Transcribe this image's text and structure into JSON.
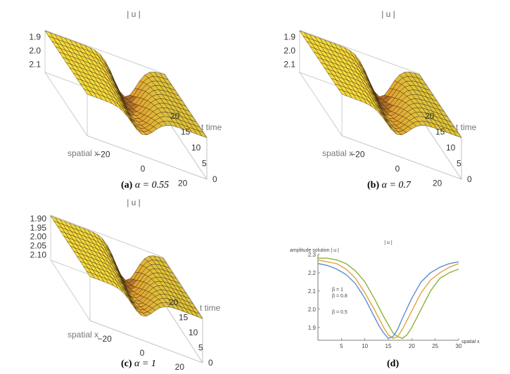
{
  "panels3d": [
    {
      "id": "a",
      "z_title": "| u |",
      "z_ticks": [
        "2.1",
        "2.0",
        "1.9"
      ],
      "x_ticks": [
        "−20",
        "0",
        "20"
      ],
      "y_ticks": [
        "0",
        "5",
        "10",
        "15",
        "20"
      ],
      "x_label": "spatial x",
      "y_label": "t time",
      "caption_letter": "(a)",
      "caption_alpha": "α = 0.55"
    },
    {
      "id": "b",
      "z_title": "| u |",
      "z_ticks": [
        "2.1",
        "2.0",
        "1.9"
      ],
      "x_ticks": [
        "−20",
        "0",
        "20"
      ],
      "y_ticks": [
        "0",
        "5",
        "10",
        "15",
        "20"
      ],
      "x_label": "spatial x",
      "y_label": "t time",
      "caption_letter": "(b)",
      "caption_alpha": "α = 0.7"
    },
    {
      "id": "c",
      "z_title": "| u |",
      "z_ticks": [
        "2.10",
        "2.05",
        "2.00",
        "1.95",
        "1.90"
      ],
      "x_ticks": [
        "−20",
        "0",
        "20"
      ],
      "y_ticks": [
        "0",
        "5",
        "10",
        "15",
        "20"
      ],
      "x_label": "spatial x",
      "y_label": "t time",
      "caption_letter": "(c)",
      "caption_alpha": "α = 1"
    }
  ],
  "panel_d": {
    "caption_letter": "(d)"
  },
  "chart_data": [
    {
      "type": "surface3d",
      "z_title": "| u |",
      "xlabel": "spatial x",
      "ylabel": "t time",
      "xlim": [
        -30,
        30
      ],
      "ylim": [
        0,
        20
      ],
      "zlim": [
        1.84,
        2.15
      ],
      "z_ticks": [
        1.9,
        2.0,
        2.1
      ]
    },
    {
      "type": "surface3d",
      "z_title": "| u |",
      "xlabel": "spatial x",
      "ylabel": "t time",
      "xlim": [
        -30,
        30
      ],
      "ylim": [
        0,
        20
      ],
      "zlim": [
        1.84,
        2.15
      ],
      "z_ticks": [
        1.9,
        2.0,
        2.1
      ]
    },
    {
      "type": "surface3d",
      "z_title": "| u |",
      "xlabel": "spatial x",
      "ylabel": "t time",
      "xlim": [
        -30,
        30
      ],
      "ylim": [
        0,
        20
      ],
      "zlim": [
        1.87,
        2.12
      ],
      "z_ticks": [
        1.9,
        1.95,
        2.0,
        2.05,
        2.1
      ]
    },
    {
      "type": "line",
      "title": "| u |",
      "ylabel": "amplitude solution | u |",
      "xlabel": "spatial x",
      "xlim": [
        0,
        30
      ],
      "ylim": [
        1.83,
        2.3
      ],
      "x_ticks": [
        5,
        10,
        15,
        20,
        25,
        30
      ],
      "y_ticks": [
        1.9,
        2.0,
        2.1,
        2.2,
        2.3
      ],
      "series": [
        {
          "name": "β = 1",
          "color": "#8fb038",
          "x": [
            0,
            2,
            4,
            6,
            8,
            10,
            12,
            14,
            16,
            17,
            18,
            19,
            20,
            22,
            24,
            26,
            28,
            30
          ],
          "y": [
            2.28,
            2.28,
            2.27,
            2.25,
            2.21,
            2.15,
            2.06,
            1.96,
            1.87,
            1.85,
            1.84,
            1.86,
            1.9,
            2.0,
            2.1,
            2.17,
            2.2,
            2.22
          ]
        },
        {
          "name": "β = 0.8",
          "color": "#e3a23a",
          "x": [
            0,
            2,
            4,
            6,
            8,
            10,
            12,
            14,
            15,
            16,
            17,
            18,
            20,
            22,
            24,
            26,
            28,
            30
          ],
          "y": [
            2.27,
            2.26,
            2.25,
            2.22,
            2.17,
            2.09,
            2.0,
            1.9,
            1.86,
            1.84,
            1.85,
            1.89,
            1.99,
            2.09,
            2.16,
            2.2,
            2.23,
            2.25
          ]
        },
        {
          "name": "β = 0.5",
          "color": "#5b8ed1",
          "x": [
            0,
            2,
            4,
            6,
            8,
            10,
            12,
            13,
            14,
            15,
            16,
            17,
            18,
            20,
            22,
            24,
            26,
            28,
            30
          ],
          "y": [
            2.25,
            2.24,
            2.22,
            2.19,
            2.14,
            2.06,
            1.96,
            1.91,
            1.87,
            1.84,
            1.85,
            1.89,
            1.95,
            2.06,
            2.15,
            2.2,
            2.23,
            2.25,
            2.26
          ]
        }
      ]
    }
  ]
}
